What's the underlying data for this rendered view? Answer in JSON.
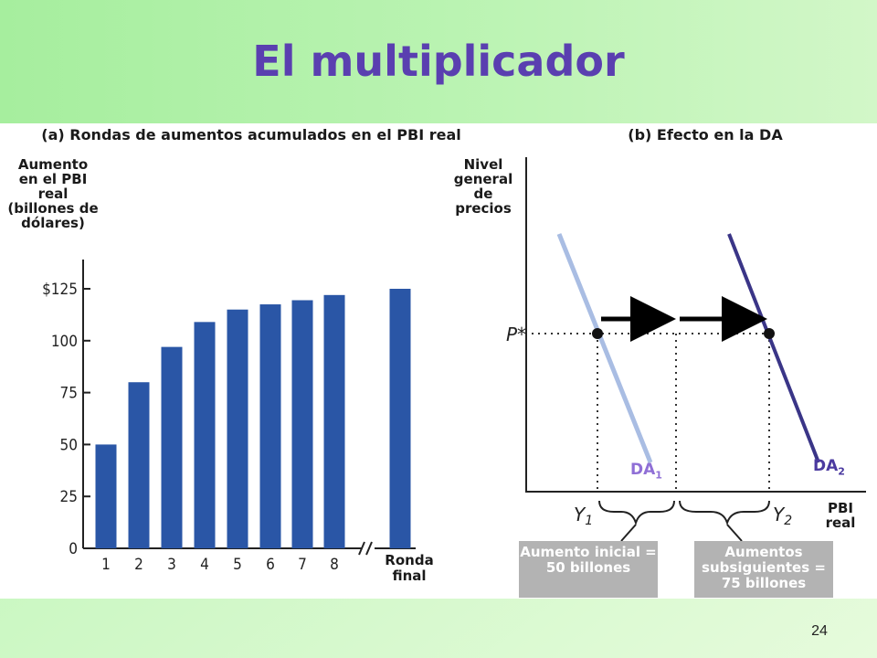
{
  "slide": {
    "title": "El multiplicador",
    "page_number": "24"
  },
  "panel_a": {
    "subtitle": "(a) Rondas de aumentos acumulados en el PBI real",
    "y_axis_label": "Aumento en el PBI real (billones de dólares)",
    "final_label": "Ronda final"
  },
  "panel_b": {
    "subtitle": "(b) Efecto en la DA",
    "y_axis_label": "Nivel general de precios",
    "x_axis_label": "PBI real",
    "p_label": "P*",
    "y1_label": "Y1",
    "y2_label": "Y2",
    "da1": {
      "name": "DA",
      "sub": "1"
    },
    "da2": {
      "name": "DA",
      "sub": "2"
    },
    "callout_left": "Aumento inicial = 50 billones",
    "callout_right": "Aumentos subsiguientes = 75 billones"
  },
  "colors": {
    "title": "#5a3fb0",
    "bar": "#2a56a6",
    "da1": "#a9bde3",
    "da2": "#3a3587",
    "da1_label": "#8f6fd6",
    "da2_label": "#4b3aa0",
    "callout_bg": "#b3b3b3"
  },
  "chart_data": [
    {
      "type": "bar",
      "title": "(a) Rondas de aumentos acumulados en el PBI real",
      "ylabel": "Aumento en el PBI real (billones de dólares)",
      "xlabel": "",
      "categories": [
        "1",
        "2",
        "3",
        "4",
        "5",
        "6",
        "7",
        "8",
        "Ronda final"
      ],
      "values": [
        50,
        80,
        97,
        109,
        115,
        117.5,
        119.5,
        122,
        125
      ],
      "yticks": [
        "0",
        "25",
        "50",
        "75",
        "100",
        "$125"
      ],
      "ylim": [
        0,
        125
      ],
      "axis_break_between": [
        "8",
        "Ronda final"
      ],
      "grid": false
    },
    {
      "type": "line",
      "title": "(b) Efecto en la DA",
      "ylabel": "Nivel general de precios",
      "xlabel": "PBI real",
      "series": [
        {
          "name": "DA1"
        },
        {
          "name": "DA2"
        }
      ],
      "annotations": [
        "P*",
        "Y1",
        "Y2",
        "Aumento inicial = 50 billones",
        "Aumentos subsiguientes = 75 billones"
      ],
      "grid": false
    }
  ]
}
